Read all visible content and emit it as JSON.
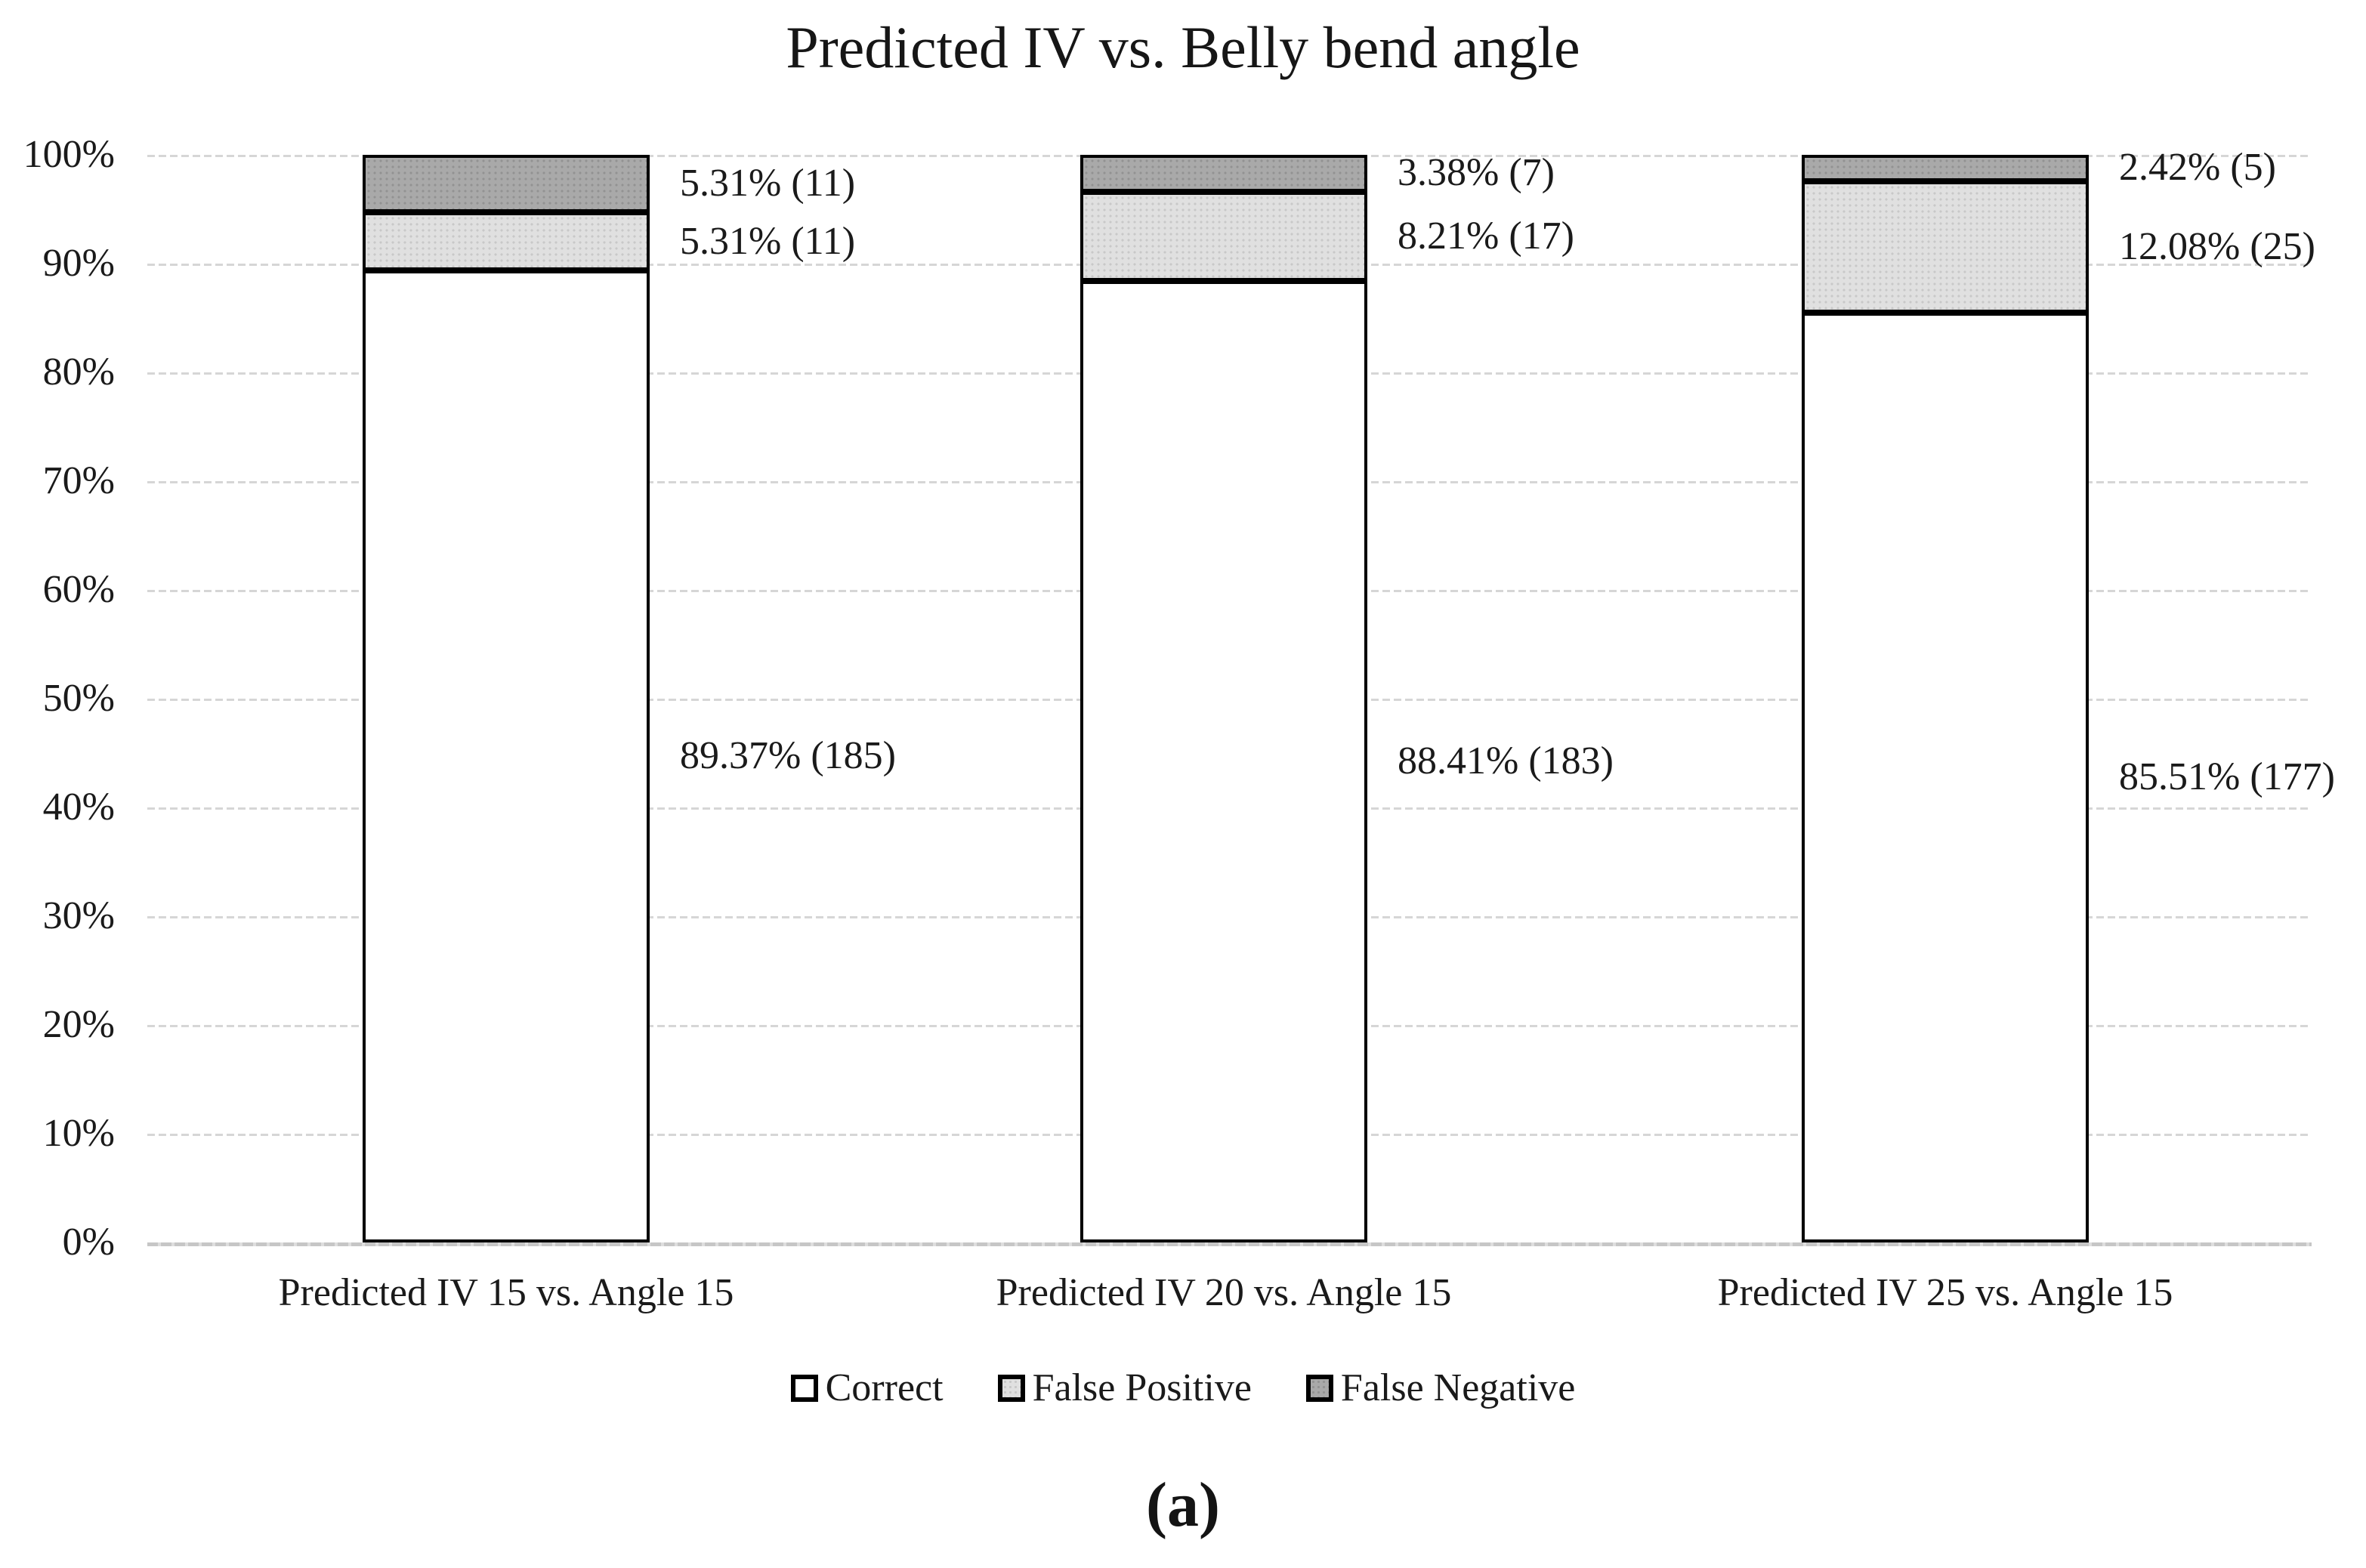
{
  "figure": {
    "caption": "(a)"
  },
  "chart_data": {
    "type": "bar",
    "stacked": true,
    "title": "Predicted IV vs. Belly bend angle",
    "xlabel": "",
    "ylabel": "",
    "ylim": [
      0,
      100
    ],
    "yticks": [
      "100%",
      "90%",
      "80%",
      "70%",
      "60%",
      "50%",
      "40%",
      "30%",
      "20%",
      "10%",
      "0%"
    ],
    "grid": "horizontal-dashed",
    "legend_position": "bottom",
    "categories": [
      "Predicted IV 15 vs. Angle 15",
      "Predicted IV 20 vs. Angle 15",
      "Predicted IV 25 vs. Angle 15"
    ],
    "series": [
      {
        "name": "Correct",
        "key": "correct",
        "color": "#ffffff",
        "values": [
          89.37,
          88.41,
          85.51
        ],
        "counts": [
          185,
          183,
          177
        ]
      },
      {
        "name": "False Positive",
        "key": "fp",
        "color": "#e0e0e0",
        "values": [
          5.31,
          8.21,
          12.08
        ],
        "counts": [
          11,
          17,
          25
        ]
      },
      {
        "name": "False Negative",
        "key": "fn",
        "color": "#a9a9a9",
        "values": [
          5.31,
          3.38,
          2.42
        ],
        "counts": [
          11,
          7,
          5
        ]
      }
    ],
    "bars": [
      {
        "category": "Predicted IV 15 vs. Angle 15",
        "segments": {
          "correct": {
            "pct": 89.37,
            "count": 185,
            "label": "89.37% (185)"
          },
          "fp": {
            "pct": 5.31,
            "count": 11,
            "label": "5.31% (11)"
          },
          "fn": {
            "pct": 5.31,
            "count": 11,
            "label": "5.31% (11)"
          }
        }
      },
      {
        "category": "Predicted IV 20 vs. Angle 15",
        "segments": {
          "correct": {
            "pct": 88.41,
            "count": 183,
            "label": "88.41% (183)"
          },
          "fp": {
            "pct": 8.21,
            "count": 17,
            "label": "8.21% (17)"
          },
          "fn": {
            "pct": 3.38,
            "count": 7,
            "label": "3.38% (7)"
          }
        }
      },
      {
        "category": "Predicted IV 25 vs. Angle 15",
        "segments": {
          "correct": {
            "pct": 85.51,
            "count": 177,
            "label": "85.51% (177)"
          },
          "fp": {
            "pct": 12.08,
            "count": 25,
            "label": "12.08% (25)"
          },
          "fn": {
            "pct": 2.42,
            "count": 5,
            "label": "2.42% (5)"
          }
        }
      }
    ],
    "legend_items": [
      {
        "label": "Correct",
        "key": "correct"
      },
      {
        "label": "False Positive",
        "key": "fp"
      },
      {
        "label": "False Negative",
        "key": "fn"
      }
    ],
    "colors": {
      "correct": "#ffffff",
      "false_positive": "#e0e0e0",
      "false_negative": "#a9a9a9",
      "segment_border": "#000000",
      "gridline": "#d6d6d6",
      "axis_line": "#c6c6c6"
    }
  }
}
